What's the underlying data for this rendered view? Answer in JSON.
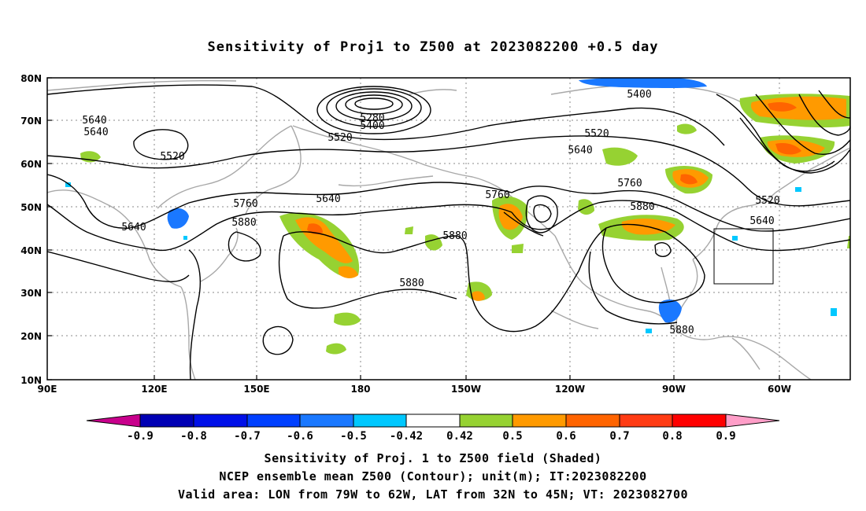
{
  "title": "Sensitivity of Proj1 to Z500 at 2023082200 +0.5 day",
  "map": {
    "lat_labels": [
      "80N",
      "70N",
      "60N",
      "50N",
      "40N",
      "30N",
      "20N",
      "10N"
    ],
    "lon_labels": [
      "90E",
      "120E",
      "150E",
      "180",
      "150W",
      "120W",
      "90W",
      "60W"
    ],
    "contour_labels": [
      "5280",
      "5400",
      "5400",
      "5520",
      "5520",
      "5520",
      "5520",
      "5640",
      "5640",
      "5640",
      "5640",
      "5640",
      "5640",
      "5760",
      "5760",
      "5760",
      "5880",
      "5880",
      "5880",
      "5880",
      "5880"
    ],
    "valid_box": {
      "lon": [
        "79W",
        "62W"
      ],
      "lat": [
        "32N",
        "45N"
      ]
    }
  },
  "colorbar": {
    "labels": [
      "-0.9",
      "-0.8",
      "-0.7",
      "-0.6",
      "-0.5",
      "-0.42",
      "0.42",
      "0.5",
      "0.6",
      "0.7",
      "0.8",
      "0.9"
    ],
    "colors": [
      "#c8008c",
      "#0000b4",
      "#0010e8",
      "#0040ff",
      "#1a78ff",
      "#00c8ff",
      "#ffffff",
      "#96d232",
      "#ff9a00",
      "#ff6400",
      "#ff3c14",
      "#ff0000",
      "#ff9ec8"
    ]
  },
  "captions": {
    "line1": "Sensitivity of Proj. 1 to Z500 field (Shaded)",
    "line2": "NCEP ensemble mean Z500 (Contour); unit(m); IT:2023082200",
    "line3": "Valid area: LON from 79W to 62W, LAT from 32N to 45N; VT: 2023082700"
  }
}
